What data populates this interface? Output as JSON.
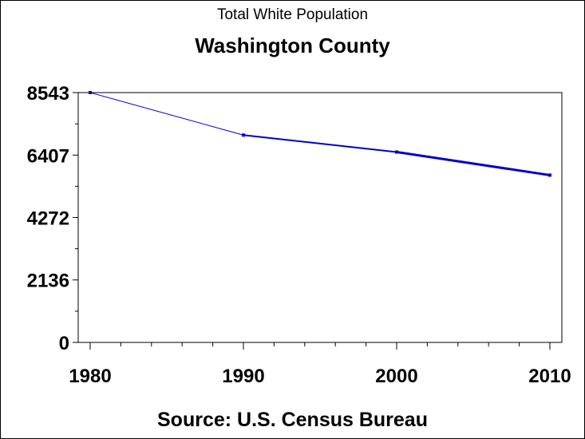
{
  "chart_data": {
    "type": "line",
    "title": "Total White Population",
    "subtitle": "Washington County",
    "footnote": "Source: U.S. Census Bureau",
    "xlabel": "",
    "ylabel": "",
    "x": [
      1980,
      1990,
      2000,
      2010
    ],
    "series": [
      {
        "values": [
          8543,
          7090,
          6510,
          5720
        ],
        "color": "#0000cc"
      }
    ],
    "xlim": [
      1980,
      2010
    ],
    "ylim": [
      0,
      8543
    ],
    "yticks": [
      "0",
      "2136",
      "4272",
      "6407",
      "8543"
    ],
    "xticks": [
      "1980",
      "1990",
      "2000",
      "2010"
    ],
    "grid": false,
    "legend": "none"
  }
}
